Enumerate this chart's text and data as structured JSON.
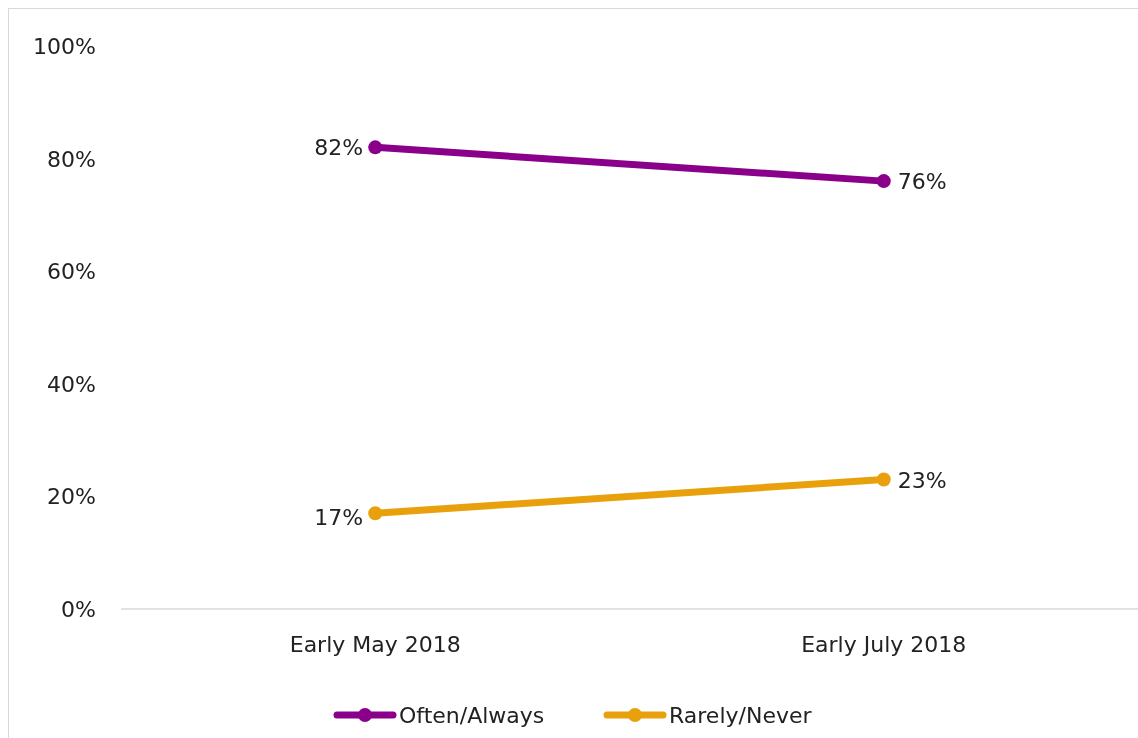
{
  "chart_data": {
    "type": "line",
    "categories": [
      "Early May 2018",
      "Early July 2018"
    ],
    "series": [
      {
        "name": "Often/Always",
        "color": "#8b008b",
        "values": [
          82,
          76
        ],
        "value_labels": [
          "82%",
          "76%"
        ]
      },
      {
        "name": "Rarely/Never",
        "color": "#e8a10c",
        "values": [
          17,
          23
        ],
        "value_labels": [
          "17%",
          "23%"
        ]
      }
    ],
    "ylim": [
      0,
      100
    ],
    "yticks": [
      {
        "value": 0,
        "label": "0%"
      },
      {
        "value": 20,
        "label": "20%"
      },
      {
        "value": 40,
        "label": "40%"
      },
      {
        "value": 60,
        "label": "60%"
      },
      {
        "value": 80,
        "label": "80%"
      },
      {
        "value": 100,
        "label": "100%"
      }
    ],
    "legend": "bottom",
    "marker": "circle",
    "line_style": "solid",
    "grid": false
  }
}
